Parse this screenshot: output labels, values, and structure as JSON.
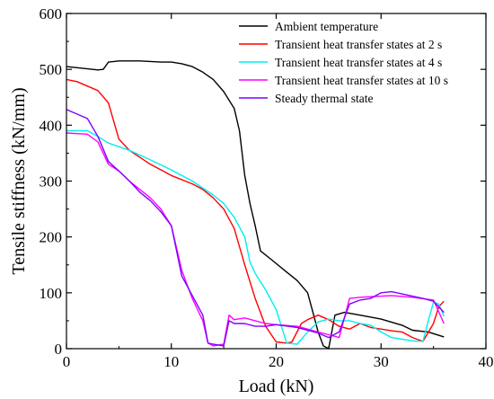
{
  "chart_data": {
    "type": "line",
    "xlabel": "Load (kN)",
    "ylabel": "Tensile stiffness (kN/mm)",
    "xlim": [
      0,
      40
    ],
    "ylim": [
      0,
      600
    ],
    "x_ticks": [
      0,
      10,
      20,
      30,
      40
    ],
    "y_ticks": [
      0,
      100,
      200,
      300,
      400,
      500,
      600
    ],
    "x_tick_labels": [
      "0",
      "10",
      "20",
      "30",
      "40"
    ],
    "y_tick_labels": [
      "0",
      "100",
      "200",
      "300",
      "400",
      "500",
      "600"
    ],
    "grid": false,
    "legend_position": "top-right",
    "series": [
      {
        "name": "Ambient temperature",
        "color": "#000000",
        "points": [
          [
            0,
            505
          ],
          [
            1,
            503
          ],
          [
            3,
            499
          ],
          [
            3.5,
            500
          ],
          [
            4,
            513
          ],
          [
            5,
            515
          ],
          [
            7,
            515
          ],
          [
            9,
            513
          ],
          [
            10,
            513
          ],
          [
            11,
            510
          ],
          [
            12,
            505
          ],
          [
            13,
            495
          ],
          [
            14,
            482
          ],
          [
            15,
            460
          ],
          [
            16,
            430
          ],
          [
            16.5,
            390
          ],
          [
            17,
            310
          ],
          [
            17.5,
            260
          ],
          [
            18,
            220
          ],
          [
            18.5,
            175
          ],
          [
            19.5,
            160
          ],
          [
            21,
            137
          ],
          [
            22,
            122
          ],
          [
            23,
            100
          ],
          [
            23.5,
            65
          ],
          [
            24,
            30
          ],
          [
            24.5,
            5
          ],
          [
            25,
            0
          ],
          [
            25.6,
            60
          ],
          [
            26.5,
            65
          ],
          [
            28,
            60
          ],
          [
            30,
            53
          ],
          [
            32,
            42
          ],
          [
            33,
            33
          ],
          [
            34.5,
            30
          ],
          [
            36,
            21
          ]
        ]
      },
      {
        "name": "Transient heat transfer states at 2 s",
        "color": "#ff0000",
        "points": [
          [
            0,
            482
          ],
          [
            1,
            478
          ],
          [
            2,
            470
          ],
          [
            3,
            462
          ],
          [
            4,
            440
          ],
          [
            5,
            375
          ],
          [
            6,
            355
          ],
          [
            8,
            330
          ],
          [
            10,
            310
          ],
          [
            12,
            295
          ],
          [
            13,
            285
          ],
          [
            14,
            270
          ],
          [
            15,
            250
          ],
          [
            16,
            215
          ],
          [
            17,
            150
          ],
          [
            18,
            90
          ],
          [
            19,
            40
          ],
          [
            20,
            12
          ],
          [
            21,
            10
          ],
          [
            21.5,
            12
          ],
          [
            22.4,
            45
          ],
          [
            23,
            52
          ],
          [
            24,
            60
          ],
          [
            25,
            52
          ],
          [
            26,
            40
          ],
          [
            27,
            35
          ],
          [
            28,
            45
          ],
          [
            29,
            38
          ],
          [
            30,
            35
          ],
          [
            31,
            32
          ],
          [
            32,
            30
          ],
          [
            33,
            20
          ],
          [
            34,
            13
          ],
          [
            35,
            45
          ],
          [
            35.5,
            75
          ],
          [
            36,
            85
          ]
        ]
      },
      {
        "name": "Transient heat transfer states at 4 s",
        "color": "#00eeee",
        "points": [
          [
            0,
            390
          ],
          [
            2,
            390
          ],
          [
            3,
            380
          ],
          [
            4,
            368
          ],
          [
            6,
            355
          ],
          [
            8,
            338
          ],
          [
            10,
            320
          ],
          [
            12,
            300
          ],
          [
            14,
            275
          ],
          [
            15,
            260
          ],
          [
            16,
            235
          ],
          [
            17,
            200
          ],
          [
            17.5,
            155
          ],
          [
            18,
            135
          ],
          [
            19,
            105
          ],
          [
            20,
            70
          ],
          [
            21,
            10
          ],
          [
            22,
            8
          ],
          [
            23,
            30
          ],
          [
            24,
            48
          ],
          [
            25,
            53
          ],
          [
            26,
            50
          ],
          [
            27,
            50
          ],
          [
            28,
            45
          ],
          [
            29,
            42
          ],
          [
            30,
            30
          ],
          [
            31,
            20
          ],
          [
            32,
            17
          ],
          [
            33,
            14
          ],
          [
            34,
            13
          ],
          [
            34.5,
            50
          ],
          [
            35,
            83
          ],
          [
            35.5,
            80
          ],
          [
            36,
            58
          ]
        ]
      },
      {
        "name": "Transient heat transfer states at 10 s",
        "color": "#ff00ff",
        "points": [
          [
            0,
            386
          ],
          [
            1,
            385
          ],
          [
            2,
            384
          ],
          [
            3,
            370
          ],
          [
            4,
            330
          ],
          [
            5,
            318
          ],
          [
            6,
            300
          ],
          [
            7,
            285
          ],
          [
            8,
            270
          ],
          [
            9,
            250
          ],
          [
            10,
            220
          ],
          [
            11,
            140
          ],
          [
            12,
            90
          ],
          [
            13,
            50
          ],
          [
            13.5,
            10
          ],
          [
            14,
            5
          ],
          [
            15,
            8
          ],
          [
            15.5,
            60
          ],
          [
            16,
            52
          ],
          [
            17,
            55
          ],
          [
            18,
            50
          ],
          [
            19,
            45
          ],
          [
            20,
            43
          ],
          [
            22,
            40
          ],
          [
            24,
            30
          ],
          [
            25,
            25
          ],
          [
            26,
            20
          ],
          [
            27,
            90
          ],
          [
            28,
            92
          ],
          [
            29,
            93
          ],
          [
            31,
            95
          ],
          [
            33,
            92
          ],
          [
            35,
            87
          ],
          [
            36,
            45
          ]
        ]
      },
      {
        "name": "Steady thermal state",
        "color": "#7f00ff",
        "points": [
          [
            0,
            428
          ],
          [
            1,
            420
          ],
          [
            2,
            412
          ],
          [
            3,
            380
          ],
          [
            4,
            335
          ],
          [
            5,
            318
          ],
          [
            6,
            300
          ],
          [
            7,
            280
          ],
          [
            8,
            265
          ],
          [
            9,
            245
          ],
          [
            10,
            220
          ],
          [
            11,
            130
          ],
          [
            12,
            95
          ],
          [
            13,
            60
          ],
          [
            13.5,
            10
          ],
          [
            14,
            8
          ],
          [
            15,
            5
          ],
          [
            15.5,
            50
          ],
          [
            16,
            45
          ],
          [
            17,
            45
          ],
          [
            18,
            40
          ],
          [
            19,
            40
          ],
          [
            20,
            43
          ],
          [
            22,
            38
          ],
          [
            24,
            28
          ],
          [
            25,
            20
          ],
          [
            26,
            30
          ],
          [
            27,
            80
          ],
          [
            28,
            87
          ],
          [
            29,
            90
          ],
          [
            30,
            100
          ],
          [
            31,
            102
          ],
          [
            32,
            98
          ],
          [
            34,
            90
          ],
          [
            35,
            85
          ],
          [
            36,
            65
          ]
        ]
      }
    ]
  }
}
